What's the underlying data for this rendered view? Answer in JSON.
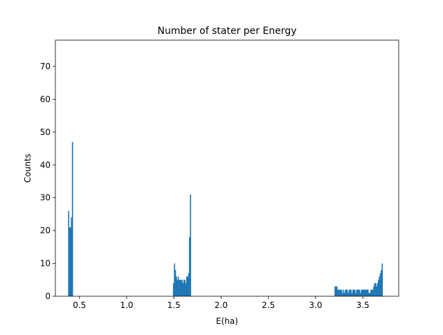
{
  "chart_data": {
    "type": "bar",
    "title": "Number of stater per Energy",
    "xlabel": "E(ha)",
    "ylabel": "Counts",
    "xlim": [
      0.245,
      3.88
    ],
    "ylim": [
      0,
      78
    ],
    "xticks": [
      0.5,
      1.0,
      1.5,
      2.0,
      2.5,
      3.0,
      3.5
    ],
    "xtick_labels": [
      "0.5",
      "1.0",
      "1.5",
      "2.0",
      "2.5",
      "3.0",
      "3.5"
    ],
    "yticks": [
      0,
      10,
      20,
      30,
      40,
      50,
      60,
      70
    ],
    "ytick_labels": [
      "0",
      "10",
      "20",
      "30",
      "40",
      "50",
      "60",
      "70"
    ],
    "grid": false,
    "bar_color": "#1f77b4",
    "bin_width": 0.01,
    "bins": [
      {
        "x": 0.38,
        "y": 26
      },
      {
        "x": 0.39,
        "y": 21
      },
      {
        "x": 0.4,
        "y": 21
      },
      {
        "x": 0.41,
        "y": 24
      },
      {
        "x": 0.42,
        "y": 47
      },
      {
        "x": 1.49,
        "y": 4
      },
      {
        "x": 1.5,
        "y": 10
      },
      {
        "x": 1.51,
        "y": 8
      },
      {
        "x": 1.52,
        "y": 6
      },
      {
        "x": 1.53,
        "y": 5
      },
      {
        "x": 1.54,
        "y": 6
      },
      {
        "x": 1.55,
        "y": 5
      },
      {
        "x": 1.56,
        "y": 5
      },
      {
        "x": 1.57,
        "y": 5
      },
      {
        "x": 1.58,
        "y": 5
      },
      {
        "x": 1.59,
        "y": 4
      },
      {
        "x": 1.6,
        "y": 5
      },
      {
        "x": 1.61,
        "y": 5
      },
      {
        "x": 1.62,
        "y": 4
      },
      {
        "x": 1.63,
        "y": 6
      },
      {
        "x": 1.64,
        "y": 6
      },
      {
        "x": 1.65,
        "y": 7
      },
      {
        "x": 1.66,
        "y": 18
      },
      {
        "x": 1.67,
        "y": 31
      },
      {
        "x": 3.2,
        "y": 3
      },
      {
        "x": 3.21,
        "y": 3
      },
      {
        "x": 3.22,
        "y": 3
      },
      {
        "x": 3.23,
        "y": 2
      },
      {
        "x": 3.24,
        "y": 2
      },
      {
        "x": 3.25,
        "y": 2
      },
      {
        "x": 3.26,
        "y": 2
      },
      {
        "x": 3.27,
        "y": 2
      },
      {
        "x": 3.28,
        "y": 1
      },
      {
        "x": 3.29,
        "y": 2
      },
      {
        "x": 3.3,
        "y": 1
      },
      {
        "x": 3.31,
        "y": 2
      },
      {
        "x": 3.32,
        "y": 2
      },
      {
        "x": 3.33,
        "y": 2
      },
      {
        "x": 3.34,
        "y": 1
      },
      {
        "x": 3.35,
        "y": 2
      },
      {
        "x": 3.36,
        "y": 2
      },
      {
        "x": 3.37,
        "y": 2
      },
      {
        "x": 3.38,
        "y": 1
      },
      {
        "x": 3.39,
        "y": 2
      },
      {
        "x": 3.4,
        "y": 2
      },
      {
        "x": 3.41,
        "y": 2
      },
      {
        "x": 3.42,
        "y": 1
      },
      {
        "x": 3.43,
        "y": 2
      },
      {
        "x": 3.44,
        "y": 2
      },
      {
        "x": 3.45,
        "y": 2
      },
      {
        "x": 3.46,
        "y": 2
      },
      {
        "x": 3.47,
        "y": 1
      },
      {
        "x": 3.48,
        "y": 2
      },
      {
        "x": 3.49,
        "y": 2
      },
      {
        "x": 3.5,
        "y": 2
      },
      {
        "x": 3.51,
        "y": 2
      },
      {
        "x": 3.52,
        "y": 2
      },
      {
        "x": 3.53,
        "y": 2
      },
      {
        "x": 3.54,
        "y": 2
      },
      {
        "x": 3.55,
        "y": 2
      },
      {
        "x": 3.56,
        "y": 1
      },
      {
        "x": 3.57,
        "y": 1
      },
      {
        "x": 3.58,
        "y": 2
      },
      {
        "x": 3.59,
        "y": 2
      },
      {
        "x": 3.6,
        "y": 2
      },
      {
        "x": 3.61,
        "y": 3
      },
      {
        "x": 3.62,
        "y": 4
      },
      {
        "x": 3.63,
        "y": 4
      },
      {
        "x": 3.64,
        "y": 3
      },
      {
        "x": 3.65,
        "y": 4
      },
      {
        "x": 3.66,
        "y": 5
      },
      {
        "x": 3.67,
        "y": 6
      },
      {
        "x": 3.68,
        "y": 7
      },
      {
        "x": 3.69,
        "y": 8
      },
      {
        "x": 3.7,
        "y": 10
      }
    ]
  }
}
